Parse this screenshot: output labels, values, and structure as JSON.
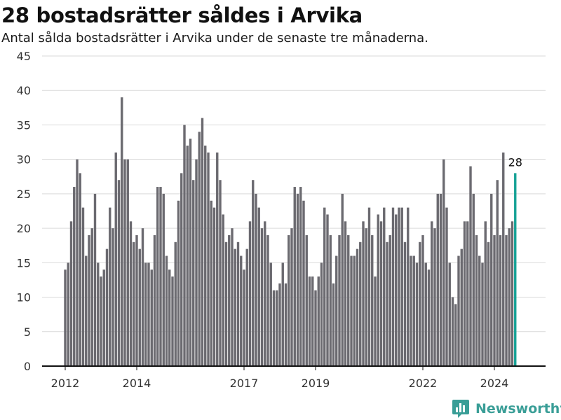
{
  "header": {
    "title": "28 bostadsrätter såldes i Arvika",
    "subtitle": "Antal sålda bostadsrätter i Arvika under de senaste tre månaderna."
  },
  "brand": {
    "name": "Newsworthy",
    "icon": "newsworthy-logo-icon"
  },
  "colors": {
    "bar": "#6b6a70",
    "highlight": "#17a296",
    "grid": "#d9d9d9",
    "axis": "#111111"
  },
  "chart_data": {
    "type": "bar",
    "title": "28 bostadsrätter såldes i Arvika",
    "subtitle": "Antal sålda bostadsrätter i Arvika under de senaste tre månaderna.",
    "xlabel": "",
    "ylabel": "",
    "ylim": [
      0,
      45
    ],
    "yticks": [
      0,
      5,
      10,
      15,
      20,
      25,
      30,
      35,
      40,
      45
    ],
    "xticks": [
      "2012",
      "2014",
      "2017",
      "2019",
      "2022",
      "2024"
    ],
    "grid": true,
    "highlight_label": "28",
    "x_start": "2012-01",
    "values": [
      14,
      15,
      21,
      26,
      30,
      28,
      23,
      16,
      19,
      20,
      25,
      15,
      13,
      14,
      17,
      23,
      20,
      31,
      27,
      39,
      30,
      30,
      21,
      18,
      19,
      17,
      20,
      15,
      15,
      14,
      19,
      26,
      26,
      25,
      16,
      14,
      13,
      18,
      24,
      28,
      35,
      32,
      33,
      27,
      30,
      34,
      36,
      32,
      31,
      24,
      23,
      31,
      27,
      22,
      18,
      19,
      20,
      17,
      18,
      16,
      14,
      17,
      21,
      27,
      25,
      23,
      20,
      21,
      19,
      15,
      11,
      11,
      12,
      15,
      12,
      19,
      20,
      26,
      25,
      26,
      24,
      19,
      13,
      13,
      11,
      13,
      15,
      23,
      22,
      19,
      12,
      16,
      19,
      25,
      21,
      19,
      16,
      16,
      17,
      18,
      21,
      20,
      23,
      19,
      13,
      22,
      21,
      23,
      18,
      19,
      23,
      22,
      23,
      23,
      18,
      23,
      16,
      16,
      15,
      18,
      19,
      15,
      14,
      21,
      20,
      25,
      25,
      30,
      23,
      15,
      10,
      9,
      16,
      17,
      21,
      21,
      29,
      25,
      19,
      16,
      15,
      21,
      18,
      25,
      19,
      27,
      19,
      31,
      19,
      20,
      21,
      28
    ],
    "highlight_index": 151
  }
}
